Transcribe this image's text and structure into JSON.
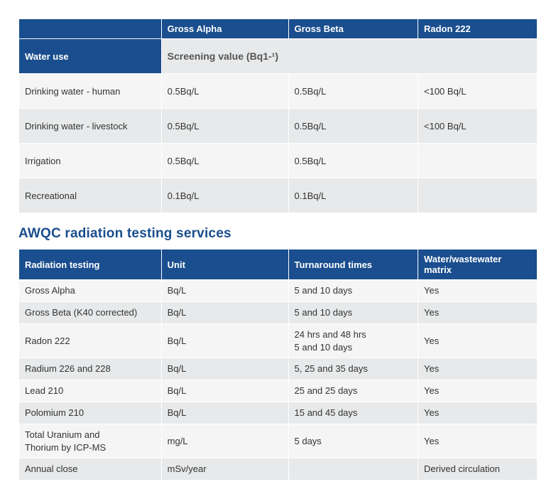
{
  "screening_table": {
    "header_row": [
      "",
      "Gross Alpha",
      "Gross Beta",
      "Radon 222"
    ],
    "sub_header": {
      "left": "Water use",
      "right_merged": "Screening value (Bq1-¹)"
    },
    "rows": [
      {
        "use": "Drinking water - human",
        "alpha": "0.5Bq/L",
        "beta": "0.5Bq/L",
        "radon": "<100 Bq/L"
      },
      {
        "use": "Drinking water - livestock",
        "alpha": "0.5Bq/L",
        "beta": "0.5Bq/L",
        "radon": "<100 Bq/L"
      },
      {
        "use": "Irrigation",
        "alpha": "0.5Bq/L",
        "beta": "0.5Bq/L",
        "radon": ""
      },
      {
        "use": "Recreational",
        "alpha": "0.1Bq/L",
        "beta": "0.1Bq/L",
        "radon": ""
      }
    ]
  },
  "section_title": "AWQC radiation testing services",
  "testing_table": {
    "header_row": [
      "Radiation testing",
      "Unit",
      "Turnaround times",
      "Water/wastewater matrix"
    ],
    "rows": [
      {
        "test": "Gross Alpha",
        "unit": "Bq/L",
        "turn": "5 and 10 days",
        "matrix": "Yes"
      },
      {
        "test": "Gross Beta (K40 corrected)",
        "unit": "Bq/L",
        "turn": "5 and 10 days",
        "matrix": "Yes"
      },
      {
        "test": "Radon 222",
        "unit": "Bq/L",
        "turn": "24 hrs and 48 hrs\n5 and 10 days",
        "matrix": "Yes"
      },
      {
        "test": "Radium 226 and 228",
        "unit": "Bq/L",
        "turn": "5, 25 and 35 days",
        "matrix": "Yes"
      },
      {
        "test": "Lead 210",
        "unit": "Bq/L",
        "turn": "25 and 25 days",
        "matrix": "Yes"
      },
      {
        "test": "Polomium 210",
        "unit": "Bq/L",
        "turn": "15 and 45 days",
        "matrix": "Yes"
      },
      {
        "test": "Total Uranium and\nThorium by ICP-MS",
        "unit": "mg/L",
        "turn": "5 days",
        "matrix": "Yes"
      },
      {
        "test": "Annual close",
        "unit": "mSv/year",
        "turn": "",
        "matrix": "Derived circulation"
      }
    ]
  },
  "colors": {
    "header_bg": "#1a4e8e",
    "header_fg": "#ffffff",
    "row_even": "#e8e9ea",
    "row_odd": "#f5f5f6",
    "title": "#1a4e8e",
    "body_text": "#333333"
  }
}
